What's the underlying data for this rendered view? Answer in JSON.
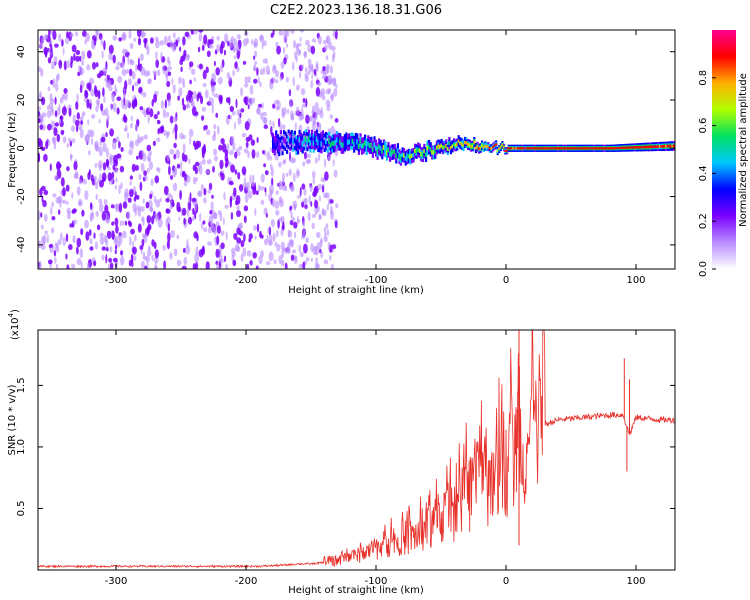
{
  "title": "C2E2.2023.136.18.31.G06",
  "colors": {
    "snr_line": "#e8302a",
    "axis": "#000000",
    "colormap": [
      "#ffffff",
      "#b98cff",
      "#7a00ff",
      "#0000ff",
      "#00c8ff",
      "#00e060",
      "#b0ff00",
      "#ffb000",
      "#ff0000",
      "#ff0090"
    ]
  },
  "chart_data": [
    {
      "type": "heatmap",
      "name": "spectrogram",
      "xlabel": "Height of straight line (km)",
      "ylabel": "Frequency (Hz)",
      "xlim": [
        -360,
        130
      ],
      "ylim": [
        -50,
        49
      ],
      "x_ticks": [
        -300,
        -200,
        -100,
        0,
        100
      ],
      "x_tick_labels": [
        "-300",
        "-200",
        "-100",
        "0",
        "100"
      ],
      "y_ticks": [
        -40,
        -20,
        0,
        20,
        40
      ],
      "y_tick_labels": [
        "-40",
        "-20",
        "0",
        "20",
        "40"
      ],
      "colorbar": {
        "label": "Normalized spectral amplitude",
        "range": [
          0,
          1
        ],
        "ticks": [
          0.0,
          0.2,
          0.4,
          0.6,
          0.8
        ],
        "tick_labels": [
          "0.0",
          "0.2",
          "0.4",
          "0.6",
          "0.8"
        ]
      },
      "description_series": [
        {
          "name": "noise_region",
          "x_range": [
            -360,
            -130
          ],
          "freq_range": [
            -50,
            49
          ],
          "amplitude": 0.2
        },
        {
          "name": "signal_band",
          "x": [
            -180,
            -150,
            -120,
            -100,
            -80,
            -60,
            -40,
            -20,
            0,
            40,
            80,
            130
          ],
          "center_freq": [
            2,
            3,
            2,
            0,
            -3,
            -1,
            2,
            1,
            0,
            0,
            0,
            1
          ],
          "width_hz": [
            8,
            8,
            7,
            7,
            6,
            6,
            5,
            4,
            3,
            3,
            3,
            4
          ],
          "peak_amplitude": [
            0.3,
            0.4,
            0.45,
            0.5,
            0.55,
            0.6,
            0.65,
            0.75,
            0.85,
            0.9,
            0.9,
            0.85
          ]
        }
      ]
    },
    {
      "type": "line",
      "name": "snr",
      "xlabel": "Height of straight line (km)",
      "ylabel": "SNR (10 * v/v)",
      "scale_note": "(x10",
      "scale_exponent": "4",
      "scale_note_close": ")",
      "xlim": [
        -360,
        130
      ],
      "ylim": [
        0,
        1.95
      ],
      "x_ticks": [
        -300,
        -200,
        -100,
        0,
        100
      ],
      "x_tick_labels": [
        "-300",
        "-200",
        "-100",
        "0",
        "100"
      ],
      "y_ticks": [
        0.5,
        1.0,
        1.5
      ],
      "y_tick_labels": [
        "0.5",
        "1.0",
        "1.5"
      ],
      "series": [
        {
          "name": "SNR",
          "x": [
            -360,
            -330,
            -300,
            -270,
            -240,
            -210,
            -190,
            -170,
            -160,
            -150,
            -140,
            -130,
            -120,
            -110,
            -100,
            -90,
            -80,
            -70,
            -60,
            -50,
            -40,
            -30,
            -20,
            -10,
            0,
            5,
            10,
            20,
            30,
            40,
            50,
            60,
            70,
            80,
            90,
            95,
            100,
            110,
            120,
            130
          ],
          "y": [
            0.03,
            0.03,
            0.03,
            0.03,
            0.03,
            0.03,
            0.03,
            0.04,
            0.05,
            0.05,
            0.06,
            0.07,
            0.1,
            0.13,
            0.18,
            0.22,
            0.26,
            0.28,
            0.33,
            0.42,
            0.5,
            0.62,
            0.7,
            0.8,
            0.9,
            0.95,
            1.0,
            1.1,
            1.18,
            1.22,
            1.23,
            1.24,
            1.25,
            1.26,
            1.26,
            1.1,
            1.24,
            1.23,
            1.22,
            1.22
          ]
        }
      ],
      "spikes": [
        {
          "x": 10,
          "y": 1.95
        },
        {
          "x": 9,
          "y": 1.45
        },
        {
          "x": 10,
          "y": 0.2
        },
        {
          "x": 91,
          "y": 1.72
        },
        {
          "x": 93,
          "y": 0.8
        },
        {
          "x": 95,
          "y": 1.55
        }
      ]
    }
  ]
}
